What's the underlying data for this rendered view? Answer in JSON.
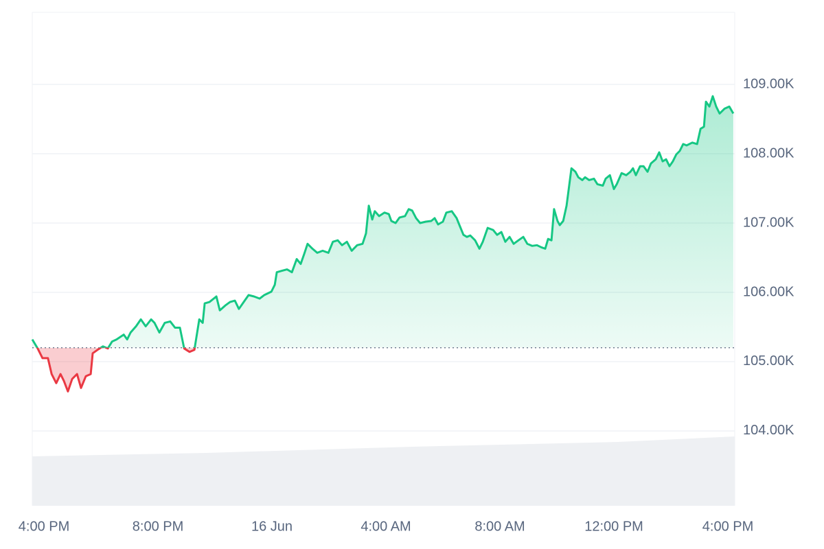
{
  "chart_data": {
    "type": "line",
    "x": [
      -0.41,
      -0.22,
      -0.05,
      0.14,
      0.27,
      0.43,
      0.58,
      0.7,
      0.84,
      0.99,
      1.16,
      1.3,
      1.47,
      1.64,
      1.71,
      1.88,
      2.07,
      2.24,
      2.39,
      2.55,
      2.8,
      2.92,
      3.04,
      3.23,
      3.4,
      3.57,
      3.76,
      3.88,
      4.05,
      4.24,
      4.43,
      4.6,
      4.77,
      4.92,
      5.11,
      5.28,
      5.45,
      5.57,
      5.64,
      5.81,
      6.05,
      6.17,
      6.36,
      6.53,
      6.7,
      6.84,
      7.01,
      7.18,
      7.37,
      7.57,
      7.73,
      7.98,
      8.1,
      8.17,
      8.34,
      8.53,
      8.7,
      8.87,
      9.01,
      9.13,
      9.25,
      9.42,
      9.59,
      9.78,
      9.98,
      10.14,
      10.31,
      10.46,
      10.63,
      10.8,
      10.99,
      11.18,
      11.3,
      11.4,
      11.52,
      11.61,
      11.76,
      11.95,
      12.1,
      12.19,
      12.34,
      12.48,
      12.67,
      12.8,
      12.92,
      13.06,
      13.2,
      13.4,
      13.59,
      13.71,
      13.83,
      14.0,
      14.12,
      14.31,
      14.48,
      14.6,
      14.72,
      14.84,
      14.96,
      15.13,
      15.28,
      15.4,
      15.57,
      15.76,
      15.9,
      16.05,
      16.19,
      16.34,
      16.48,
      16.65,
      16.82,
      16.96,
      17.13,
      17.3,
      17.45,
      17.59,
      17.69,
      17.81,
      17.9,
      18.02,
      18.1,
      18.22,
      18.34,
      18.51,
      18.65,
      18.75,
      18.89,
      18.99,
      19.13,
      19.3,
      19.42,
      19.61,
      19.71,
      19.86,
      20.0,
      20.1,
      20.27,
      20.43,
      20.58,
      20.67,
      20.77,
      20.92,
      21.04,
      21.18,
      21.3,
      21.47,
      21.59,
      21.71,
      21.83,
      21.95,
      22.07,
      22.19,
      22.31,
      22.43,
      22.55,
      22.75,
      22.92,
      23.04,
      23.16,
      23.23,
      23.35,
      23.47,
      23.59,
      23.71,
      23.88,
      24.05,
      24.19
    ],
    "values": [
      105320,
      105190,
      105050,
      105050,
      104820,
      104690,
      104820,
      104720,
      104570,
      104750,
      104820,
      104620,
      104790,
      104820,
      105120,
      105170,
      105220,
      105190,
      105290,
      105320,
      105390,
      105320,
      105420,
      105510,
      105610,
      105510,
      105610,
      105560,
      105420,
      105560,
      105580,
      105490,
      105490,
      105190,
      105140,
      105170,
      105610,
      105560,
      105840,
      105860,
      105940,
      105740,
      105810,
      105860,
      105880,
      105760,
      105860,
      105960,
      105940,
      105910,
      105960,
      106010,
      106110,
      106290,
      106310,
      106330,
      106290,
      106480,
      106410,
      106550,
      106700,
      106630,
      106570,
      106600,
      106570,
      106730,
      106750,
      106680,
      106730,
      106600,
      106680,
      106700,
      106850,
      107250,
      107050,
      107170,
      107100,
      107150,
      107130,
      107030,
      107000,
      107080,
      107100,
      107200,
      107180,
      107070,
      107000,
      107020,
      107030,
      107070,
      106980,
      107020,
      107150,
      107170,
      107070,
      106950,
      106830,
      106800,
      106820,
      106750,
      106630,
      106730,
      106930,
      106900,
      106830,
      106870,
      106730,
      106800,
      106700,
      106750,
      106800,
      106700,
      106670,
      106680,
      106650,
      106630,
      106770,
      106750,
      107200,
      107030,
      106970,
      107030,
      107250,
      107790,
      107740,
      107660,
      107620,
      107660,
      107620,
      107640,
      107560,
      107540,
      107640,
      107690,
      107490,
      107560,
      107720,
      107690,
      107740,
      107790,
      107690,
      107820,
      107820,
      107740,
      107860,
      107920,
      108020,
      107890,
      107920,
      107820,
      107890,
      107990,
      108040,
      108140,
      108120,
      108160,
      108140,
      108360,
      108390,
      108750,
      108680,
      108830,
      108680,
      108580,
      108650,
      108680,
      108580
    ],
    "color": "#16c784",
    "down_color": "#ea3943",
    "baseline": 105200,
    "xlim": [
      -0.41,
      24.24
    ],
    "xticks": [
      {
        "value": 0,
        "label": "4:00 PM"
      },
      {
        "value": 4,
        "label": "8:00 PM"
      },
      {
        "value": 8,
        "label": "16 Jun"
      },
      {
        "value": 12,
        "label": "4:00 AM"
      },
      {
        "value": 16,
        "label": "8:00 AM"
      },
      {
        "value": 20,
        "label": "12:00 PM"
      },
      {
        "value": 24,
        "label": "4:00 PM"
      }
    ],
    "ylim": [
      102920,
      110040
    ],
    "yticks": [
      {
        "value": 104000,
        "label": "104.00K"
      },
      {
        "value": 105000,
        "label": "105.00K"
      },
      {
        "value": 106000,
        "label": "106.00K"
      },
      {
        "value": 107000,
        "label": "107.00K"
      },
      {
        "value": 108000,
        "label": "108.00K"
      },
      {
        "value": 109000,
        "label": "109.00K"
      }
    ],
    "grid": true
  }
}
